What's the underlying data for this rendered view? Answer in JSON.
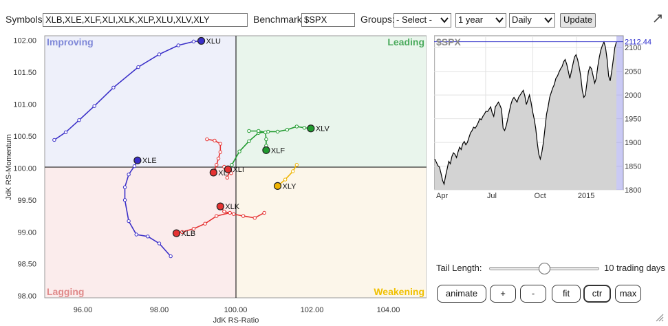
{
  "toolbar": {
    "symbols_label": "Symbols:",
    "symbols_value": "XLB,XLE,XLF,XLI,XLK,XLP,XLU,XLV,XLY",
    "benchmark_label": "Benchmark:",
    "benchmark_value": "$SPX",
    "groups_label": "Groups:",
    "groups_selected": "- Select -",
    "period_selected": "1 year",
    "frequency_selected": "Daily",
    "update_label": "Update",
    "expand_icon": "expand-arrows-icon"
  },
  "rrg": {
    "quadrants": {
      "improving": "Improving",
      "leading": "Leading",
      "lagging": "Lagging",
      "weakening": "Weakening"
    },
    "quadrant_colors": {
      "improving_bg": "#eef0fa",
      "improving_text": "#7f88d8",
      "leading_bg": "#e9f5ec",
      "leading_text": "#4aaa5c",
      "lagging_bg": "#fbecec",
      "lagging_text": "#e08a8a",
      "weakening_bg": "#fcf6ea",
      "weakening_text": "#f0c000"
    }
  },
  "chart_data": [
    {
      "type": "scatter",
      "title": "",
      "xlabel": "JdK RS-Ratio",
      "ylabel": "JdK RS-Momentum",
      "xlim": [
        95.0,
        105.0
      ],
      "ylim": [
        97.97,
        102.07
      ],
      "x_ticks": [
        "96.00",
        "98.00",
        "100.00",
        "102.00",
        "104.00"
      ],
      "y_ticks": [
        "98.00",
        "98.50",
        "99.00",
        "99.50",
        "100.00",
        "100.50",
        "101.00",
        "101.50",
        "102.00"
      ],
      "series": [
        {
          "name": "XLU",
          "color": "#3a2fc8",
          "points": [
            [
              95.25,
              100.44
            ],
            [
              95.55,
              100.56
            ],
            [
              95.9,
              100.75
            ],
            [
              96.3,
              100.97
            ],
            [
              96.8,
              101.26
            ],
            [
              97.45,
              101.58
            ],
            [
              98.0,
              101.78
            ],
            [
              98.5,
              101.92
            ],
            [
              98.9,
              101.98
            ],
            [
              99.1,
              101.99
            ]
          ]
        },
        {
          "name": "XLE",
          "color": "#3a2fc8",
          "points": [
            [
              98.3,
              98.62
            ],
            [
              98.0,
              98.82
            ],
            [
              97.7,
              98.93
            ],
            [
              97.4,
              98.96
            ],
            [
              97.2,
              99.17
            ],
            [
              97.1,
              99.5
            ],
            [
              97.1,
              99.7
            ],
            [
              97.2,
              99.9
            ],
            [
              97.35,
              100.03
            ],
            [
              97.43,
              100.12
            ]
          ]
        },
        {
          "name": "XLV",
          "color": "#1f9a2e",
          "points": [
            [
              99.9,
              100.05
            ],
            [
              100.1,
              100.26
            ],
            [
              100.35,
              100.42
            ],
            [
              100.6,
              100.55
            ],
            [
              100.85,
              100.57
            ],
            [
              101.1,
              100.57
            ],
            [
              101.35,
              100.6
            ],
            [
              101.6,
              100.65
            ],
            [
              101.8,
              100.63
            ],
            [
              101.97,
              100.62
            ]
          ]
        },
        {
          "name": "XLF",
          "color": "#1f9a2e",
          "points": [
            [
              100.35,
              100.58
            ],
            [
              100.6,
              100.58
            ],
            [
              100.78,
              100.56
            ],
            [
              100.8,
              100.45
            ],
            [
              100.8,
              100.35
            ],
            [
              100.8,
              100.28
            ]
          ]
        },
        {
          "name": "XLP",
          "color": "#e53232",
          "points": [
            [
              99.25,
              100.45
            ],
            [
              99.45,
              100.43
            ],
            [
              99.6,
              100.38
            ],
            [
              99.6,
              100.25
            ],
            [
              99.55,
              100.15
            ],
            [
              99.5,
              100.05
            ],
            [
              99.45,
              99.97
            ],
            [
              99.42,
              99.93
            ]
          ]
        },
        {
          "name": "XLI",
          "color": "#e53232",
          "points": [
            [
              99.78,
              99.85
            ],
            [
              99.85,
              99.97
            ],
            [
              99.78,
              100.0
            ],
            [
              99.7,
              100.02
            ],
            [
              99.8,
              99.95
            ],
            [
              99.88,
              99.92
            ],
            [
              99.82,
              100.0
            ],
            [
              99.74,
              99.98
            ],
            [
              99.8,
              99.98
            ]
          ]
        },
        {
          "name": "XLK",
          "color": "#e53232",
          "points": [
            [
              100.75,
              99.3
            ],
            [
              100.5,
              99.22
            ],
            [
              100.2,
              99.25
            ],
            [
              99.95,
              99.28
            ],
            [
              99.7,
              99.32
            ],
            [
              99.6,
              99.4
            ]
          ]
        },
        {
          "name": "XLB",
          "color": "#e53232",
          "points": [
            [
              99.85,
              99.3
            ],
            [
              99.5,
              99.25
            ],
            [
              99.2,
              99.13
            ],
            [
              98.9,
              99.05
            ],
            [
              98.6,
              99.0
            ],
            [
              98.45,
              98.98
            ]
          ]
        },
        {
          "name": "XLY",
          "color": "#f0b400",
          "points": [
            [
              101.6,
              100.05
            ],
            [
              101.5,
              99.95
            ],
            [
              101.3,
              99.82
            ],
            [
              101.1,
              99.72
            ]
          ]
        }
      ]
    },
    {
      "type": "line",
      "title": "$SPX",
      "last_value": "2112.44",
      "x_tick_labels": [
        "Apr",
        "Jul",
        "Oct",
        "2015"
      ],
      "y_ticks": [
        "1800",
        "1850",
        "1900",
        "1950",
        "2000",
        "2050",
        "2100"
      ],
      "ylim": [
        1800,
        2125
      ],
      "values": [
        1865,
        1858,
        1851,
        1848,
        1835,
        1820,
        1812,
        1830,
        1845,
        1860,
        1855,
        1870,
        1878,
        1875,
        1868,
        1880,
        1890,
        1885,
        1897,
        1902,
        1895,
        1900,
        1910,
        1920,
        1925,
        1932,
        1930,
        1935,
        1942,
        1950,
        1948,
        1955,
        1960,
        1966,
        1965,
        1970,
        1975,
        1962,
        1955,
        1975,
        1980,
        1985,
        1978,
        1970,
        1930,
        1925,
        1935,
        1950,
        1965,
        1980,
        1990,
        1995,
        1990,
        1985,
        1995,
        2000,
        2005,
        2010,
        1998,
        1980,
        1990,
        2000,
        1985,
        1965,
        1950,
        1930,
        1900,
        1875,
        1865,
        1880,
        1900,
        1930,
        1960,
        1975,
        1995,
        2005,
        2015,
        2022,
        2035,
        2040,
        2048,
        2055,
        2060,
        2070,
        2075,
        2065,
        2050,
        2035,
        2050,
        2065,
        2080,
        2085,
        2075,
        2060,
        2040,
        2010,
        1995,
        2000,
        2025,
        2050,
        2060,
        2055,
        2040,
        2025,
        2035,
        2060,
        2080,
        2095,
        2105,
        2112,
        2100,
        2075,
        2040,
        2030,
        2050,
        2075,
        2100,
        2112
      ]
    }
  ],
  "spx_panel": {
    "tail_length_label": "Tail Length:",
    "tail_length_value": 0.5,
    "tail_length_text": "10 trading days"
  },
  "controls": {
    "animate": "animate",
    "plus": "+",
    "minus": "-",
    "fit": "fit",
    "ctr": "ctr",
    "max": "max"
  }
}
